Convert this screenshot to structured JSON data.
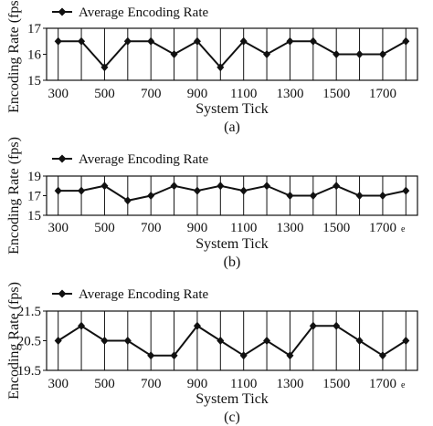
{
  "chart_data": [
    {
      "type": "line",
      "legend": "Average Encoding Rate",
      "xlabel": "System Tick",
      "ylabel": "Encoding Rate (fps)",
      "caption": "(a)",
      "x": [
        300,
        400,
        500,
        600,
        700,
        800,
        900,
        1000,
        1100,
        1200,
        1300,
        1400,
        1500,
        1600,
        1700,
        1800
      ],
      "x_tick_labels": [
        "300",
        "500",
        "700",
        "900",
        "1100",
        "1300",
        "1500",
        "1700"
      ],
      "y_tick_labels": [
        "15",
        "16",
        "17"
      ],
      "xlim": [
        250,
        1850
      ],
      "ylim": [
        15,
        17
      ],
      "series": [
        {
          "name": "Average Encoding Rate",
          "values": [
            16.5,
            16.5,
            15.5,
            16.5,
            16.5,
            16.0,
            16.5,
            15.5,
            16.5,
            16.0,
            16.5,
            16.5,
            16.0,
            16.0,
            16.0,
            16.5
          ]
        }
      ],
      "grid": "vertical"
    },
    {
      "type": "line",
      "legend": "Average Encoding Rate",
      "xlabel": "System Tick",
      "ylabel": "Encoding Rate (fps)",
      "caption": "(b)",
      "x": [
        300,
        400,
        500,
        600,
        700,
        800,
        900,
        1000,
        1100,
        1200,
        1300,
        1400,
        1500,
        1600,
        1700,
        1800
      ],
      "x_tick_labels": [
        "300",
        "500",
        "700",
        "900",
        "1100",
        "1300",
        "1500",
        "1700"
      ],
      "x_tick_suffix": "e",
      "y_tick_labels": [
        "15",
        "17",
        "19"
      ],
      "xlim": [
        250,
        1850
      ],
      "ylim": [
        15,
        19
      ],
      "series": [
        {
          "name": "Average Encoding Rate",
          "values": [
            17.5,
            17.5,
            18.0,
            16.5,
            17.0,
            18.0,
            17.5,
            18.0,
            17.5,
            18.0,
            17.0,
            17.0,
            18.0,
            17.0,
            17.0,
            17.5
          ]
        }
      ],
      "grid": "vertical"
    },
    {
      "type": "line",
      "legend": "Average Encoding Rate",
      "xlabel": "System Tick",
      "ylabel": "Encoding Rate (fps)",
      "caption": "(c)",
      "x": [
        300,
        400,
        500,
        600,
        700,
        800,
        900,
        1000,
        1100,
        1200,
        1300,
        1400,
        1500,
        1600,
        1700,
        1800
      ],
      "x_tick_labels": [
        "300",
        "500",
        "700",
        "900",
        "1100",
        "1300",
        "1500",
        "1700"
      ],
      "x_tick_suffix": "e",
      "y_tick_labels": [
        "19.5",
        "20.5",
        "21.5"
      ],
      "xlim": [
        250,
        1850
      ],
      "ylim": [
        19.5,
        21.5
      ],
      "series": [
        {
          "name": "Average Encoding Rate",
          "values": [
            20.5,
            21.0,
            20.5,
            20.5,
            20.0,
            20.0,
            21.0,
            20.5,
            20.0,
            20.5,
            20.0,
            21.0,
            21.0,
            20.5,
            20.0,
            20.5
          ]
        }
      ],
      "grid": "vertical"
    }
  ]
}
